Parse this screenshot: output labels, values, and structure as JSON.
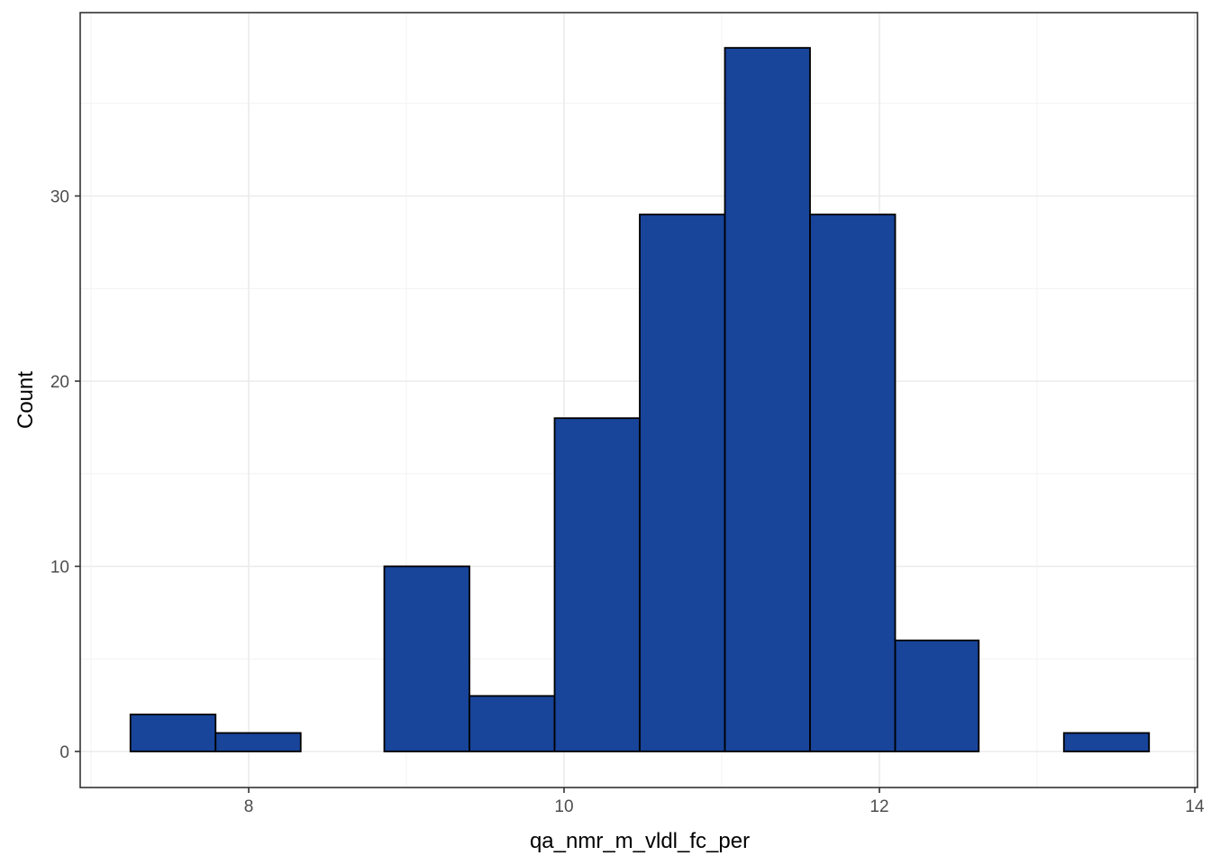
{
  "chart_data": {
    "type": "bar",
    "subtype": "histogram",
    "xlabel": "qa_nmr_m_vldl_fc_per",
    "ylabel": "Count",
    "xlim": [
      7,
      14
    ],
    "ylim": [
      0,
      40
    ],
    "x_ticks": [
      8,
      10,
      12,
      14
    ],
    "y_ticks": [
      0,
      10,
      20,
      30
    ],
    "bins": [
      {
        "x_start": 7.25,
        "x_end": 7.79,
        "count": 2
      },
      {
        "x_start": 7.79,
        "x_end": 8.33,
        "count": 1
      },
      {
        "x_start": 8.33,
        "x_end": 8.86,
        "count": 0
      },
      {
        "x_start": 8.86,
        "x_end": 9.4,
        "count": 10
      },
      {
        "x_start": 9.4,
        "x_end": 9.94,
        "count": 3
      },
      {
        "x_start": 9.94,
        "x_end": 10.48,
        "count": 18
      },
      {
        "x_start": 10.48,
        "x_end": 11.02,
        "count": 29
      },
      {
        "x_start": 11.02,
        "x_end": 11.56,
        "count": 38
      },
      {
        "x_start": 11.56,
        "x_end": 12.1,
        "count": 29
      },
      {
        "x_start": 12.1,
        "x_end": 12.63,
        "count": 6
      },
      {
        "x_start": 12.63,
        "x_end": 13.17,
        "count": 0
      },
      {
        "x_start": 13.17,
        "x_end": 13.71,
        "count": 1
      }
    ],
    "colors": {
      "bar_fill": "#184499",
      "bar_stroke": "#000000",
      "panel_border": "#333333"
    },
    "grid": true,
    "legend": "none"
  }
}
